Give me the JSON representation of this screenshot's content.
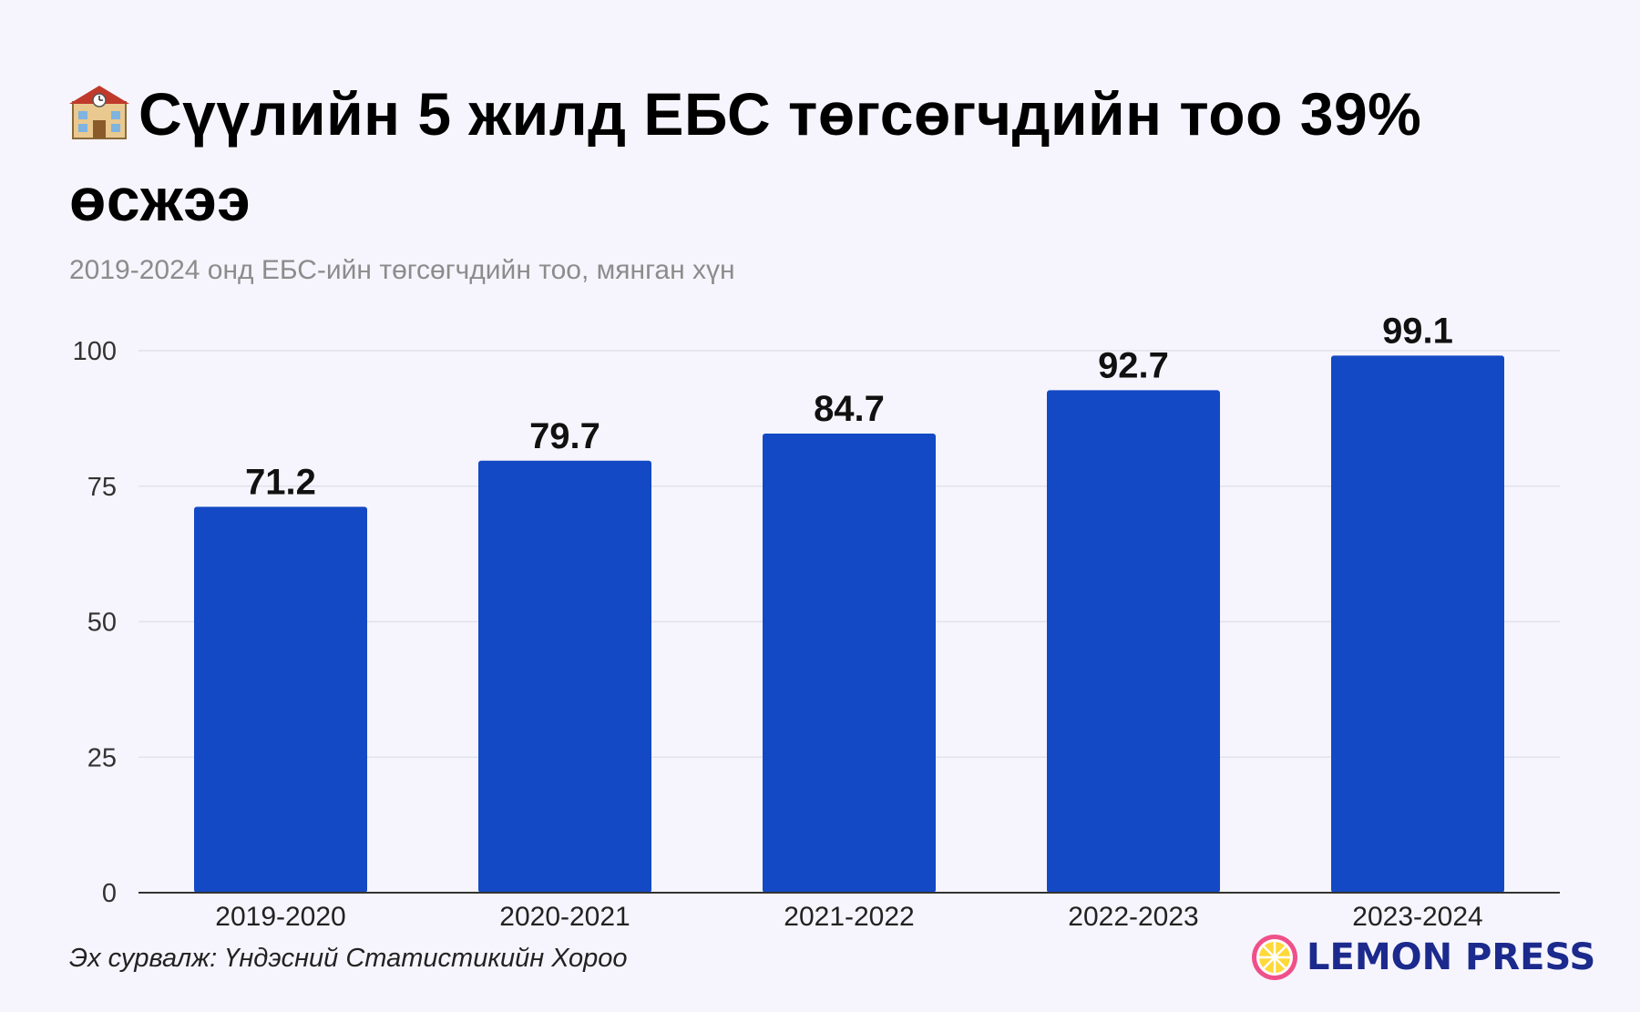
{
  "header": {
    "title": "Сүүлийн 5 жилд ЕБС төгсөгчдийн тоо 39% өсжээ",
    "title_icon": "school-icon",
    "subtitle": "2019-2024 онд ЕБС-ийн төгсөгчдийн тоо, мянган хүн"
  },
  "chart_data": {
    "type": "bar",
    "title": "",
    "categories": [
      "2019-2020",
      "2020-2021",
      "2021-2022",
      "2022-2023",
      "2023-2024"
    ],
    "values": [
      71.2,
      79.7,
      84.7,
      92.7,
      99.1
    ],
    "data_labels": [
      "71.2",
      "79.7",
      "84.7",
      "92.7",
      "99.1"
    ],
    "xlabel": "",
    "ylabel": "",
    "ylim": [
      0,
      100
    ],
    "yticks": [
      0,
      25,
      50,
      75,
      100
    ],
    "grid": true,
    "bar_color": "#1349c4"
  },
  "footer": {
    "source": "Эх сурвалж: Үндэсний Статистикийн Хороо",
    "logo_text": "LEMON PRESS",
    "logo_icon": "lemon-icon"
  },
  "colors": {
    "background": "#f6f5fd",
    "bar": "#1349c4",
    "grid": "#e2e2ea",
    "axis": "#333333",
    "logo_text": "#1b2a8c",
    "logo_ring": "#f0508a",
    "logo_fill": "#ffd83a"
  }
}
